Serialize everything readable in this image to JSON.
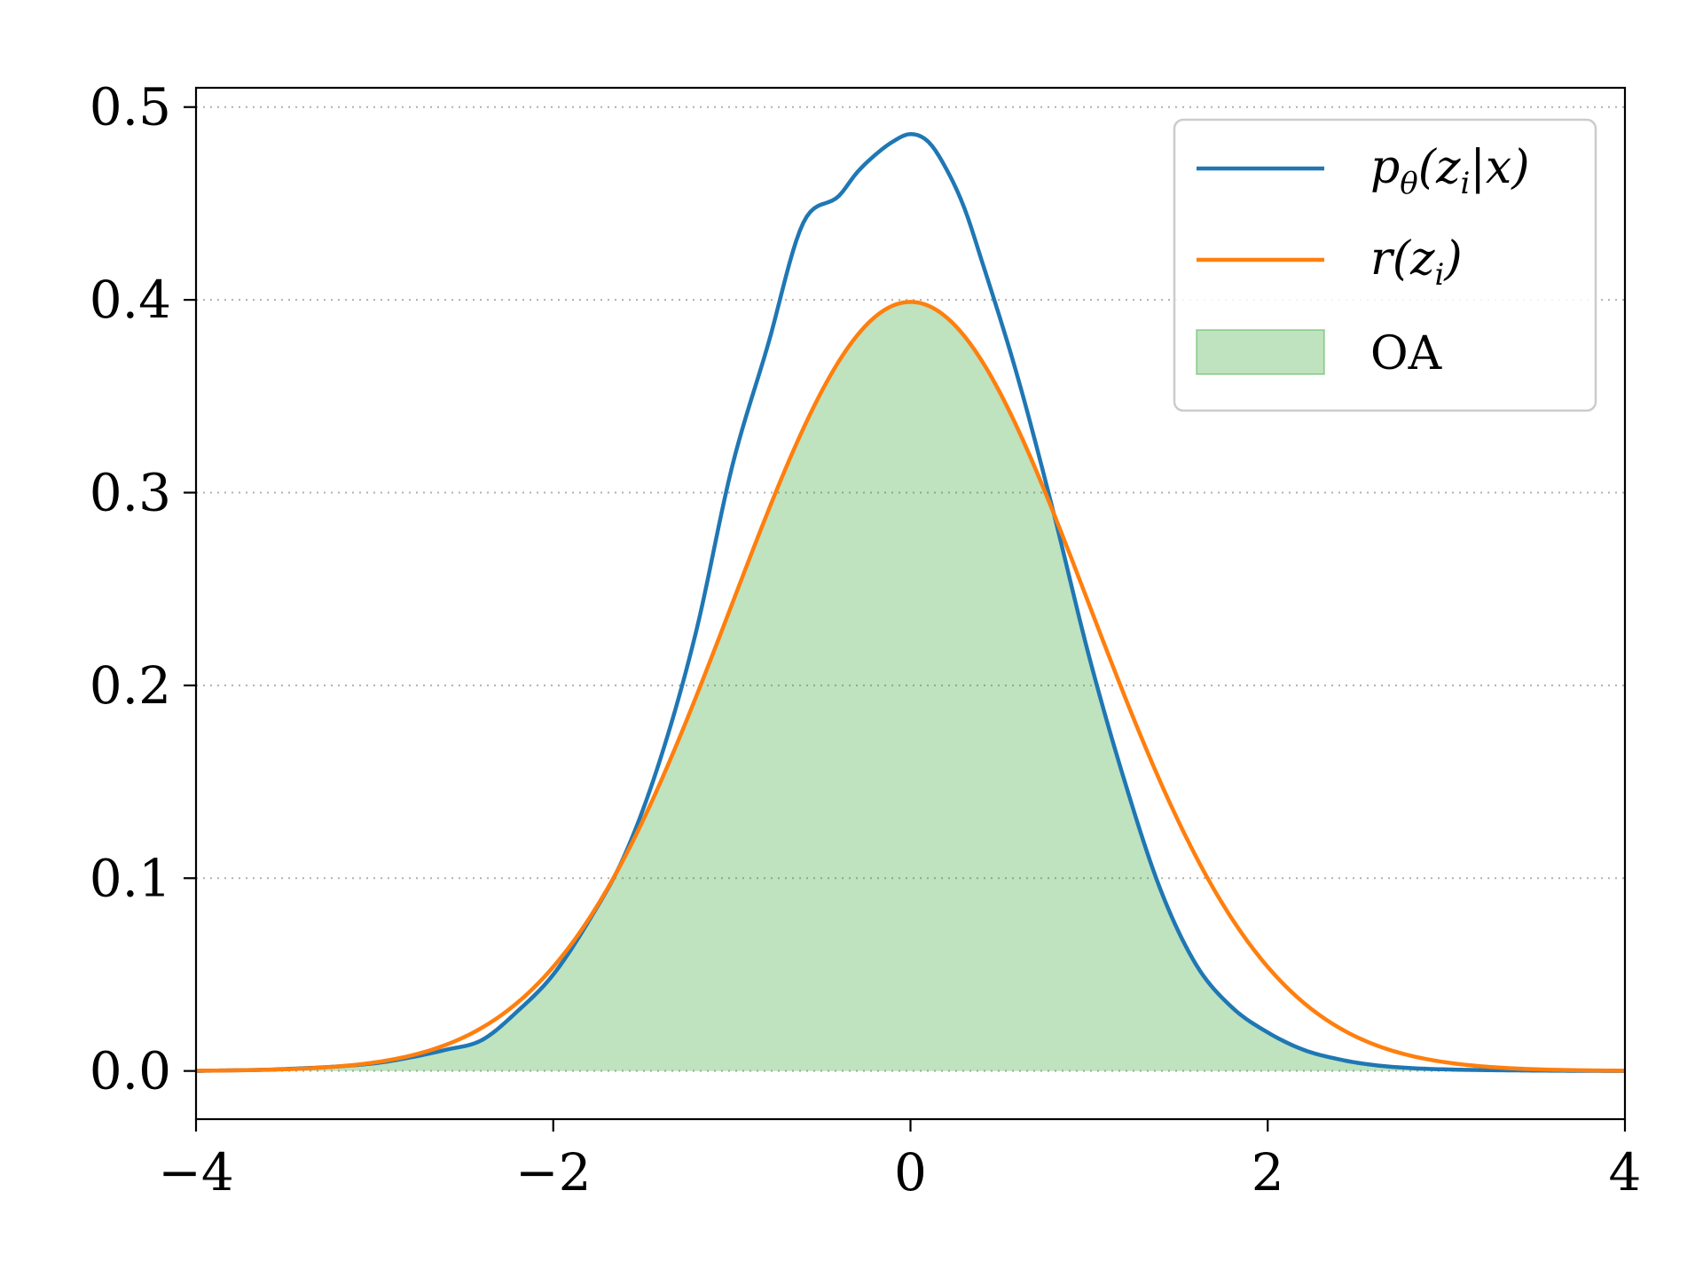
{
  "chart_data": {
    "type": "area",
    "title": "",
    "xlabel": "",
    "ylabel": "",
    "xlim": [
      -4,
      4
    ],
    "ylim": [
      -0.025,
      0.51
    ],
    "xticks": [
      -4,
      -2,
      0,
      2,
      4
    ],
    "xtick_labels": [
      "−4",
      "−2",
      "0",
      "2",
      "4"
    ],
    "yticks": [
      0.0,
      0.1,
      0.2,
      0.3,
      0.4,
      0.5
    ],
    "ytick_labels": [
      "0.0",
      "0.1",
      "0.2",
      "0.3",
      "0.4",
      "0.5"
    ],
    "grid": "y, dotted",
    "legend_position": "top-right",
    "series": [
      {
        "name": "pθ(zi|x)",
        "kind": "line",
        "color": "#1f77b4",
        "x": [
          -4.0,
          -3.5,
          -3.0,
          -2.8,
          -2.6,
          -2.4,
          -2.2,
          -2.0,
          -1.8,
          -1.6,
          -1.4,
          -1.2,
          -1.0,
          -0.8,
          -0.6,
          -0.4,
          -0.3,
          -0.2,
          -0.1,
          0.0,
          0.1,
          0.2,
          0.3,
          0.4,
          0.6,
          0.8,
          1.0,
          1.2,
          1.4,
          1.6,
          1.8,
          2.0,
          2.2,
          2.4,
          2.6,
          2.8,
          3.0,
          3.5,
          4.0
        ],
        "y": [
          0.0,
          0.001,
          0.004,
          0.007,
          0.011,
          0.016,
          0.031,
          0.05,
          0.078,
          0.112,
          0.162,
          0.228,
          0.313,
          0.376,
          0.44,
          0.454,
          0.466,
          0.475,
          0.482,
          0.486,
          0.482,
          0.468,
          0.448,
          0.42,
          0.36,
          0.29,
          0.215,
          0.15,
          0.094,
          0.055,
          0.033,
          0.02,
          0.011,
          0.006,
          0.003,
          0.0015,
          0.0008,
          0.0002,
          0.0
        ]
      },
      {
        "name": "r(zi)",
        "kind": "line",
        "color": "#ff7f0e",
        "distribution": "standard normal N(0,1)",
        "x_range": [
          -4,
          4
        ]
      },
      {
        "name": "OA",
        "kind": "fill",
        "color": "#2ca02c",
        "alpha": 0.3,
        "definition": "area under min(pθ(zi|x), r(zi))"
      }
    ],
    "legend": [
      {
        "label_main": "p",
        "label_sub": "θ",
        "label_rest": "(z",
        "label_sub2": "i",
        "label_tail": "|x)"
      },
      {
        "label_main": "r(z",
        "label_sub": "i",
        "label_tail": ")"
      },
      {
        "label_main": "OA"
      }
    ]
  }
}
